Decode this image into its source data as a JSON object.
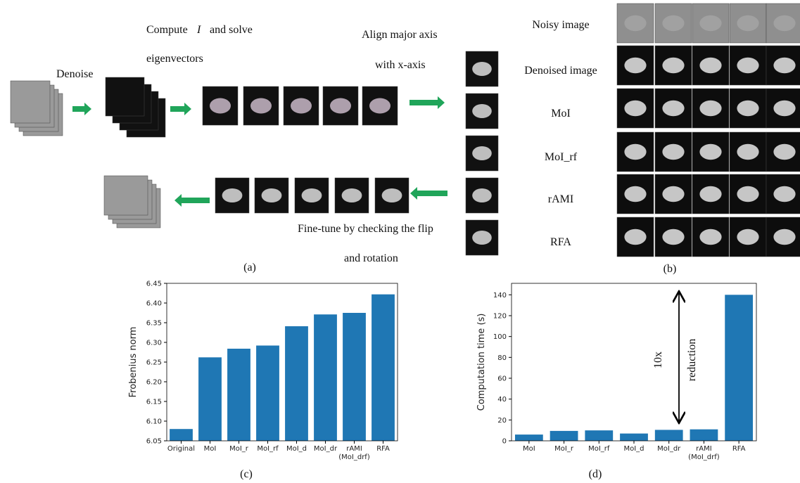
{
  "panel_a": {
    "caption": "(a)",
    "denoise": "Denoise",
    "compute": "Compute",
    "symbol": "I",
    "solve": "and solve",
    "eigenvectors": "eigenvectors",
    "align": "Align major axis",
    "align_2": "with  x-axis",
    "finetune": "Fine-tune by checking the flip",
    "finetune_2": "and rotation"
  },
  "panel_b": {
    "caption": "(b)",
    "rows": [
      "Noisy image",
      "Denoised image",
      "MoI",
      "MoI_rf",
      "rAMI",
      "RFA"
    ]
  },
  "chart_data": [
    {
      "type": "bar",
      "caption": "(c)",
      "y_label": "Frobenius norm",
      "color": "#1f77b4",
      "categories": [
        "Original",
        "MoI",
        "MoI_r",
        "MoI_rf",
        "MoI_d",
        "MoI_dr",
        "rAMI\n(MoI_drf)",
        "RFA"
      ],
      "values": [
        6.08,
        6.262,
        6.284,
        6.292,
        6.341,
        6.371,
        6.375,
        6.422
      ],
      "ylim": [
        6.05,
        6.45
      ],
      "yticks": [
        6.05,
        {
          "value": 6.1,
          "label": "6.10"
        },
        6.15,
        {
          "value": 6.2,
          "label": "6.20"
        },
        6.25,
        {
          "value": 6.3,
          "label": "6.30"
        },
        6.35,
        {
          "value": 6.4,
          "label": "6.40"
        },
        6.45
      ]
    },
    {
      "type": "bar",
      "caption": "(d)",
      "y_label": "Computation time (s)",
      "color": "#1f77b4",
      "categories": [
        "MoI",
        "MoI_r",
        "MoI_rf",
        "MoI_d",
        "MoI_dr",
        "rAMI\n(MoI_drf)",
        "RFA"
      ],
      "values": [
        6,
        9.5,
        10,
        7,
        10.5,
        11,
        140
      ],
      "ylim": [
        0,
        151
      ],
      "yticks": [
        0,
        20,
        40,
        60,
        80,
        100,
        120,
        140
      ],
      "annotations": [
        "10x",
        "reduction"
      ]
    }
  ]
}
